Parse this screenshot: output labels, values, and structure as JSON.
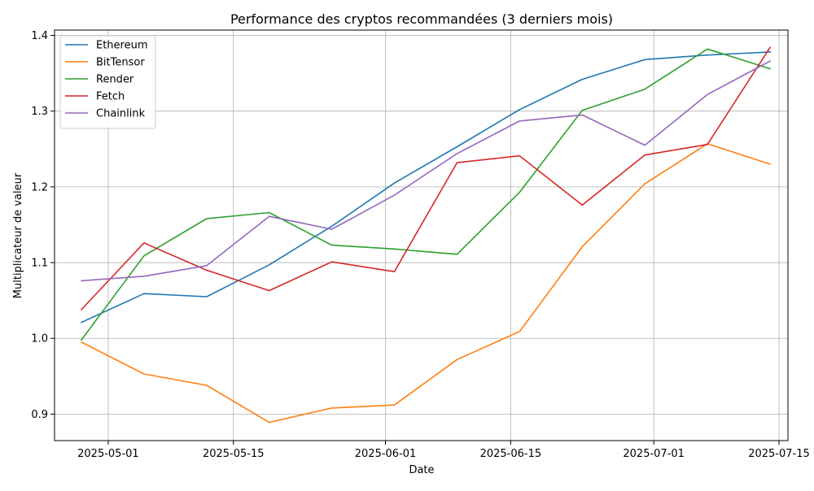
{
  "chart_data": {
    "type": "line",
    "title": "Performance des cryptos recommandées (3 derniers mois)",
    "xlabel": "Date",
    "ylabel": "Multiplicateur de valeur",
    "x": [
      "2025-04-28",
      "2025-05-05",
      "2025-05-12",
      "2025-05-19",
      "2025-05-26",
      "2025-06-02",
      "2025-06-09",
      "2025-06-16",
      "2025-06-23",
      "2025-06-30",
      "2025-07-07",
      "2025-07-14"
    ],
    "xlim": [
      "2025-04-25",
      "2025-07-16"
    ],
    "ylim": [
      0.865,
      1.407
    ],
    "x_ticks": [
      "2025-05-01",
      "2025-05-15",
      "2025-06-01",
      "2025-06-15",
      "2025-07-01",
      "2025-07-15"
    ],
    "y_ticks": [
      0.9,
      1.0,
      1.1,
      1.2,
      1.3,
      1.4
    ],
    "y_tick_labels": [
      "0.9",
      "1.0",
      "1.1",
      "1.2",
      "1.3",
      "1.4"
    ],
    "grid": true,
    "legend_position": "top-left",
    "series": [
      {
        "name": "Ethereum",
        "color": "#1f77b4",
        "values": [
          1.021,
          1.059,
          1.055,
          1.097,
          1.148,
          1.205,
          1.253,
          1.302,
          1.342,
          1.368,
          1.374,
          1.378
        ]
      },
      {
        "name": "BitTensor",
        "color": "#ff7f0e",
        "values": [
          0.995,
          0.953,
          0.938,
          0.889,
          0.908,
          0.912,
          0.972,
          1.009,
          1.121,
          1.204,
          1.257,
          1.23
        ]
      },
      {
        "name": "Render",
        "color": "#2ca02c",
        "values": [
          0.998,
          1.109,
          1.158,
          1.166,
          1.123,
          1.118,
          1.111,
          1.193,
          1.301,
          1.329,
          1.382,
          1.356
        ]
      },
      {
        "name": "Fetch",
        "color": "#d62728",
        "values": [
          1.038,
          1.126,
          1.09,
          1.063,
          1.101,
          1.088,
          1.232,
          1.241,
          1.176,
          1.242,
          1.256,
          1.384
        ]
      },
      {
        "name": "Chainlink",
        "color": "#9467bd",
        "values": [
          1.076,
          1.082,
          1.096,
          1.161,
          1.144,
          1.189,
          1.244,
          1.287,
          1.295,
          1.255,
          1.322,
          1.366
        ]
      }
    ]
  }
}
